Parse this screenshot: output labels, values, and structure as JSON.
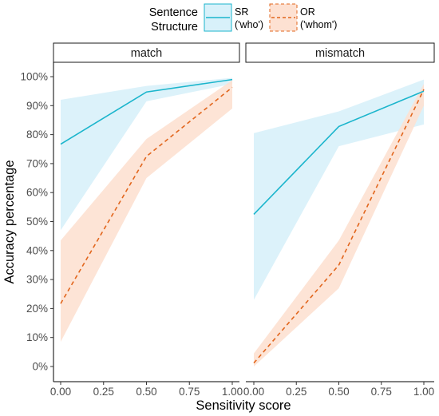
{
  "chart_data": {
    "type": "line",
    "legend": {
      "title_lines": [
        "Sentence",
        "Structure"
      ],
      "placement": "top"
    },
    "x": [
      0,
      0.5,
      1
    ],
    "xlabel": "Sensitivity score",
    "ylabel": "Accuracy percentage",
    "x_ticks": [
      "0.00",
      "0.25",
      "0.50",
      "0.75",
      "1.00"
    ],
    "y_ticks": [
      "0%",
      "10%",
      "20%",
      "30%",
      "40%",
      "50%",
      "60%",
      "70%",
      "80%",
      "90%",
      "100%"
    ],
    "xlim": [
      0,
      1
    ],
    "ylim": [
      0,
      100
    ],
    "grid": false,
    "series_style": [
      {
        "label_lines": [
          "SR",
          "('who')"
        ],
        "line_color": "#1bb5cc",
        "ribbon_color": "#d8f1fa",
        "dashed": false
      },
      {
        "label_lines": [
          "OR",
          "('whom')"
        ],
        "line_color": "#e2661d",
        "ribbon_color": "#fde1d2",
        "dashed": true
      }
    ],
    "panels": [
      {
        "title": "match",
        "series": [
          {
            "values": [
              76.7,
              94.7,
              99.0
            ],
            "lower": [
              47.0,
              91.5,
              97.5
            ],
            "upper": [
              92.0,
              96.8,
              99.6
            ]
          },
          {
            "values": [
              21.7,
              72.5,
              96.3
            ],
            "lower": [
              8.5,
              65.0,
              89.0
            ],
            "upper": [
              43.5,
              78.5,
              98.8
            ]
          }
        ]
      },
      {
        "title": "mismatch",
        "series": [
          {
            "values": [
              52.5,
              82.8,
              95.0
            ],
            "lower": [
              23.0,
              76.0,
              83.5
            ],
            "upper": [
              80.5,
              88.0,
              99.0
            ]
          },
          {
            "values": [
              1.2,
              35.0,
              95.6
            ],
            "lower": [
              0.0,
              27.0,
              90.0
            ],
            "upper": [
              4.5,
              43.5,
              97.5
            ]
          }
        ]
      }
    ]
  }
}
